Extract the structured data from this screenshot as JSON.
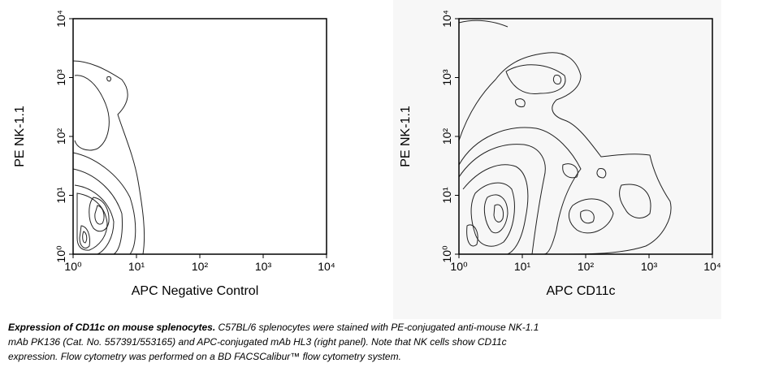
{
  "chart_data": [
    {
      "type": "contour",
      "x_label": "APC Negative Control",
      "y_label": "PE NK-1.1",
      "log_scale": true,
      "xlim": [
        1,
        10000
      ],
      "ylim": [
        1,
        10000
      ],
      "xticks": [
        {
          "value": 1,
          "label": "10⁰"
        },
        {
          "value": 10,
          "label": "10¹"
        },
        {
          "value": 100,
          "label": "10²"
        },
        {
          "value": 1000,
          "label": "10³"
        },
        {
          "value": 10000,
          "label": "10⁴"
        }
      ],
      "yticks": [
        {
          "value": 1,
          "label": "10⁰"
        },
        {
          "value": 10,
          "label": "10¹"
        },
        {
          "value": 100,
          "label": "10²"
        },
        {
          "value": 1000,
          "label": "10³"
        },
        {
          "value": 10000,
          "label": "10⁴"
        }
      ]
    },
    {
      "type": "contour",
      "x_label": "APC CD11c",
      "y_label": "PE NK-1.1",
      "log_scale": true,
      "xlim": [
        1,
        10000
      ],
      "ylim": [
        1,
        10000
      ],
      "xticks": [
        {
          "value": 1,
          "label": "10⁰"
        },
        {
          "value": 10,
          "label": "10¹"
        },
        {
          "value": 100,
          "label": "10²"
        },
        {
          "value": 1000,
          "label": "10³"
        },
        {
          "value": 10000,
          "label": "10⁴"
        }
      ],
      "yticks": [
        {
          "value": 1,
          "label": "10⁰"
        },
        {
          "value": 10,
          "label": "10¹"
        },
        {
          "value": 100,
          "label": "10²"
        },
        {
          "value": 1000,
          "label": "10³"
        },
        {
          "value": 10000,
          "label": "10⁴"
        }
      ]
    }
  ],
  "caption": {
    "title": "Expression of CD11c on mouse splenocytes.",
    "lines": [
      " C57BL/6 splenocytes were stained with PE-conjugated anti-mouse NK-1.1",
      "mAb PK136 (Cat. No. 557391/553165) and APC-conjugated mAb HL3 (right panel). Note that NK cells show CD11c",
      "expression. Flow cytometry was performed on a BD FACSCalibur™ flow cytometry system."
    ]
  }
}
